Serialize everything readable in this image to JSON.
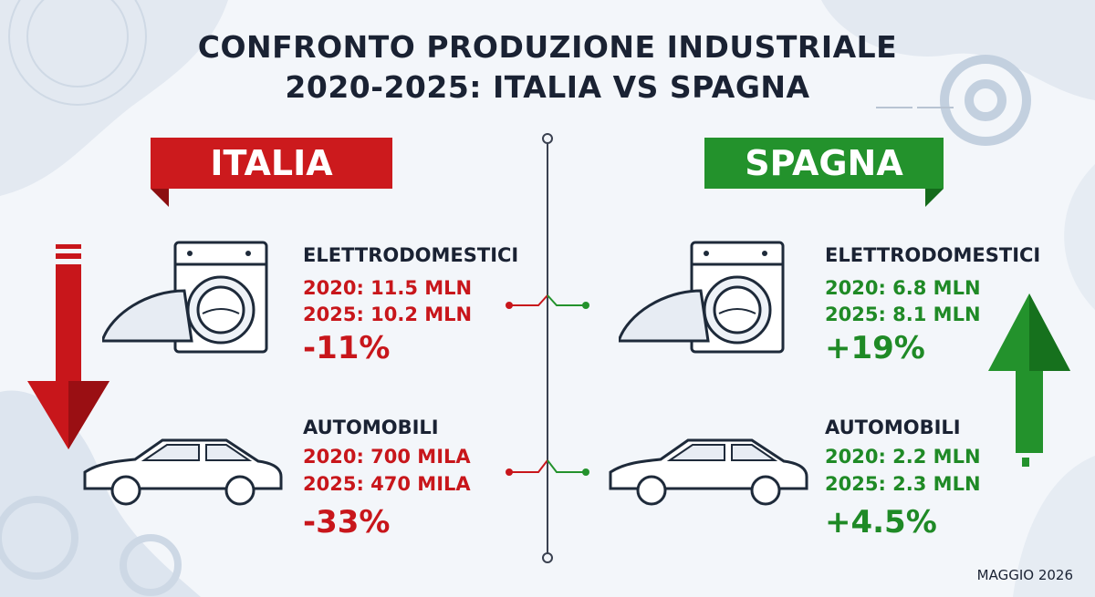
{
  "title": {
    "line1": "CONFRONTO PRODUZIONE INDUSTRIALE",
    "line2": "2020-2025: ITALIA VS SPAGNA"
  },
  "italia": {
    "label": "ITALIA",
    "color": "#cc1a1d",
    "trend_icon": "arrow-down-icon",
    "elettrodomestici": {
      "label": "ELETTRODOMESTICI",
      "y2020": "2020: 11.5 MLN",
      "y2025": "2025: 10.2 MLN",
      "change": "-11%",
      "icon": "appliance-icon"
    },
    "automobili": {
      "label": "AUTOMOBILI",
      "y2020": "2020: 700 MILA",
      "y2025": "2025: 470 MILA",
      "change": "-33%",
      "icon": "car-icon"
    }
  },
  "spagna": {
    "label": "SPAGNA",
    "color": "#23922c",
    "trend_icon": "arrow-up-icon",
    "elettrodomestici": {
      "label": "ELETTRODOMESTICI",
      "y2020": "2020: 6.8 MLN",
      "y2025": "2025: 8.1 MLN",
      "change": "+19%",
      "icon": "appliance-icon"
    },
    "automobili": {
      "label": "AUTOMOBILI",
      "y2020": "2020: 2.2 MLN",
      "y2025": "2025: 2.3 MLN",
      "change": "+4.5%",
      "icon": "car-icon"
    }
  },
  "footer": "MAGGIO 2026"
}
